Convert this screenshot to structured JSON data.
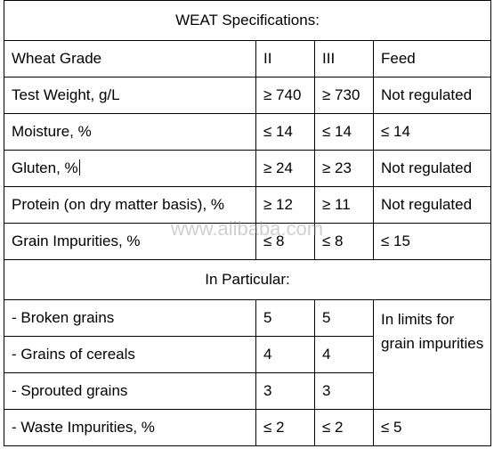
{
  "title": "WEAT Specifications:",
  "header": [
    "Wheat Grade",
    "II",
    "III",
    "Feed"
  ],
  "rows": [
    [
      "Test Weight, g/L",
      "≥ 740",
      "≥ 730",
      "Not regulated"
    ],
    [
      "Moisture, %",
      "≤ 14",
      "≤ 14",
      "≤ 14"
    ],
    [
      "Gluten, %",
      "≥ 24",
      "≥ 23",
      "Not regulated"
    ],
    [
      "Protein (on dry matter basis), %",
      "≥ 12",
      "≥ 11",
      "Not regulated"
    ],
    [
      "Grain Impurities, %",
      "≤ 8",
      "≤ 8",
      "≤ 15"
    ]
  ],
  "section": "In Particular:",
  "particular_rows": [
    [
      "- Broken grains",
      "5",
      "5"
    ],
    [
      "- Grains of cereals",
      "4",
      "4"
    ],
    [
      "- Sprouted grains",
      "3",
      "3"
    ]
  ],
  "particular_note": "In limits for grain impurities",
  "last_row": [
    "- Waste Impurities, %",
    "≤ 2",
    "≤ 2",
    "≤ 5"
  ],
  "watermark": "www.alibaba.com"
}
